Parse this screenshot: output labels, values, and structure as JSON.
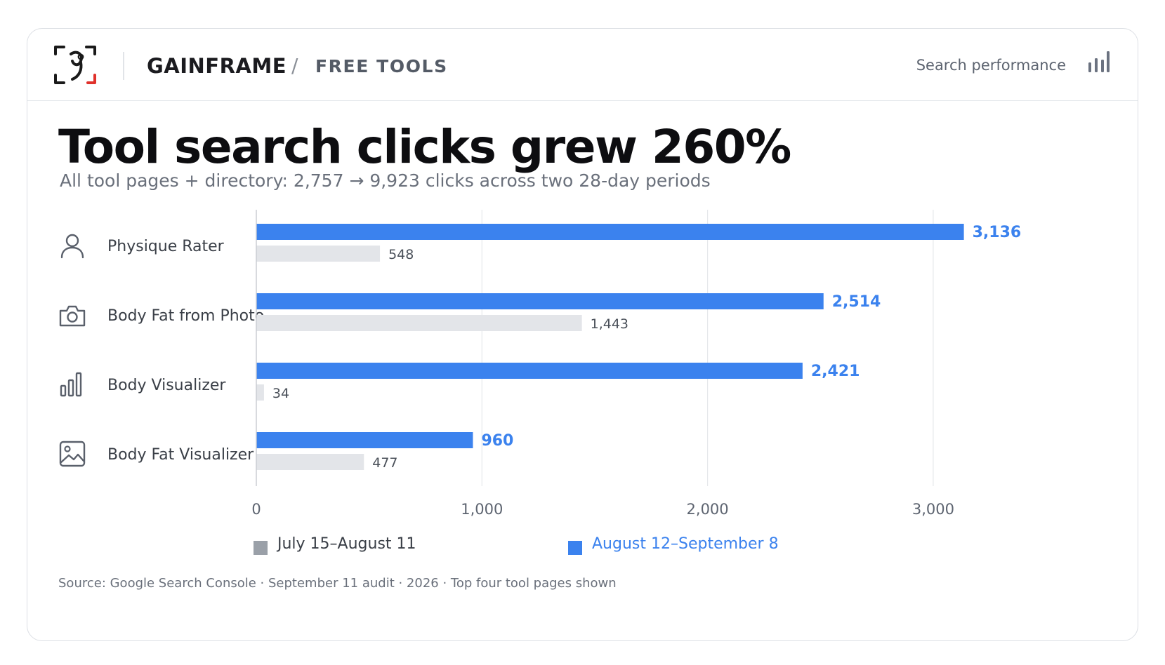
{
  "header": {
    "brand": "GAINFRAME",
    "separator": "/",
    "section": "FREE TOOLS",
    "right_label": "Search performance",
    "right_icon": "bar-chart-icon",
    "logo_icon": "gainframe-logo-icon"
  },
  "headline": {
    "title": "Tool search clicks grew 260%",
    "subtitle": "All tool pages + directory: 2,757 → 9,923 clicks across two 28-day periods"
  },
  "colors": {
    "current": "#3b82ee",
    "previous": "#e3e5e9",
    "previous_legend": "#9aa0a8",
    "grid": "#e6e8eb",
    "logo_red": "#e0312b"
  },
  "chart_data": {
    "type": "bar",
    "orientation": "horizontal",
    "categories": [
      "Physique Rater",
      "Body Fat from Photo",
      "Body Visualizer",
      "Body Fat Visualizer"
    ],
    "category_icons": [
      "user-icon",
      "camera-icon",
      "bar-chart-icon",
      "image-icon"
    ],
    "series": [
      {
        "name": "August 12–September 8",
        "values": [
          3136,
          2514,
          2421,
          960
        ]
      },
      {
        "name": "July 15–August 11",
        "values": [
          548,
          1443,
          34,
          477
        ]
      }
    ],
    "value_labels": {
      "current": [
        "3,136",
        "2,514",
        "2,421",
        "960"
      ],
      "previous": [
        "548",
        "1,443",
        "34",
        "477"
      ]
    },
    "xlim": [
      0,
      3000
    ],
    "xticks": [
      0,
      1000,
      2000,
      3000
    ],
    "xtick_labels": [
      "0",
      "1,000",
      "2,000",
      "3,000"
    ],
    "grid": true,
    "legend_position": "bottom"
  },
  "legend": {
    "previous": "July 15–August 11",
    "current": "August 12–September 8"
  },
  "footer": {
    "source": "Source: Google Search Console · September 11 audit · 2026 · Top four tool pages shown"
  }
}
